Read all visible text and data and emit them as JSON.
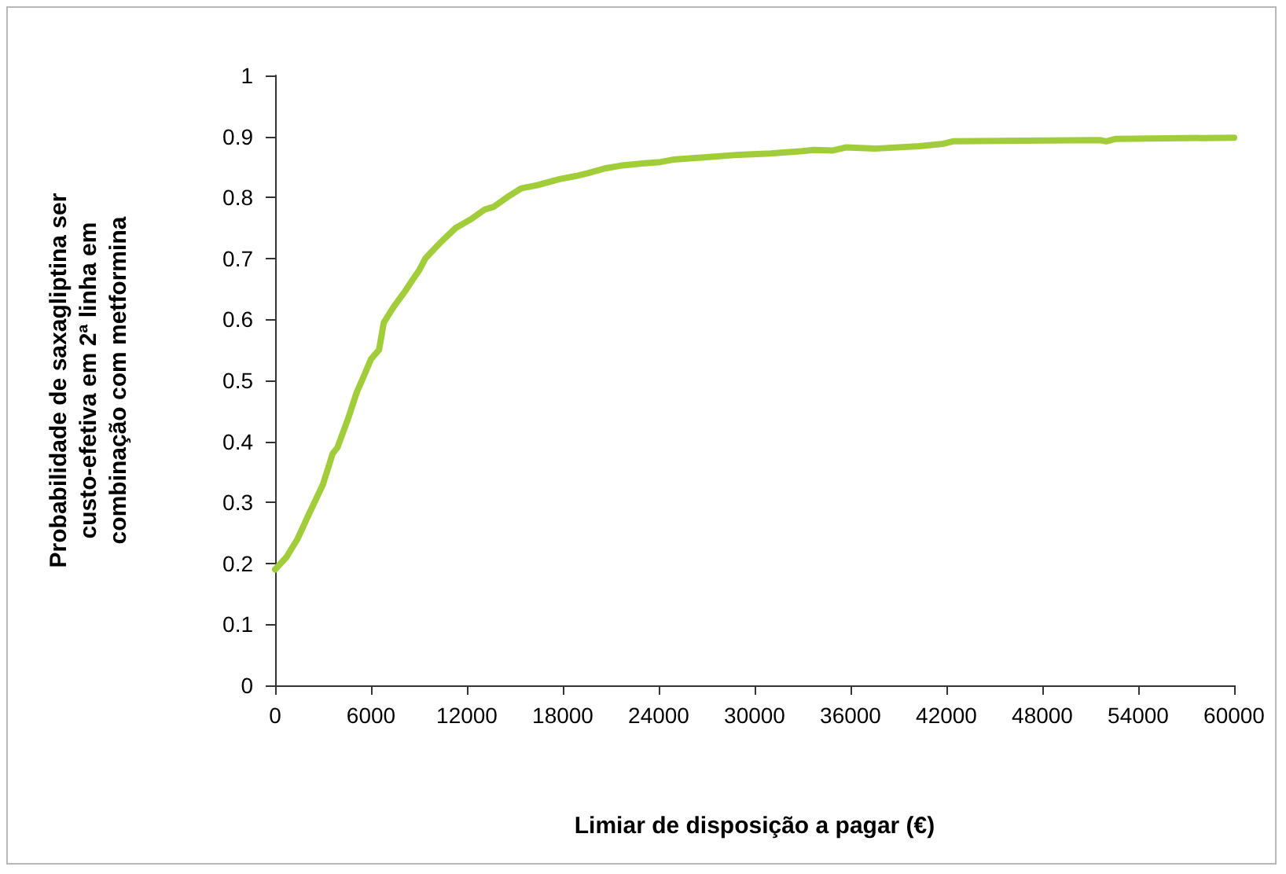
{
  "chart_data": {
    "type": "line",
    "xlabel": "Limiar de disposição a pagar (€)",
    "ylabel": "Probabilidade de saxagliptina ser\ncusto-efetiva em 2ª linha em\ncombinação com metformina",
    "x": [
      0,
      700,
      1400,
      2100,
      3000,
      3600,
      3900,
      4600,
      5100,
      5600,
      6000,
      6500,
      6800,
      7400,
      8100,
      8600,
      9000,
      9400,
      10300,
      11300,
      12300,
      13100,
      13700,
      14500,
      15400,
      16400,
      17800,
      18800,
      19600,
      20700,
      21600,
      23100,
      24100,
      24900,
      27000,
      29000,
      31000,
      33000,
      33700,
      34900,
      35700,
      37500,
      40300,
      41800,
      42400,
      51600,
      52000,
      52600,
      60000
    ],
    "series": [
      {
        "color": "#a2cd3a",
        "values": [
          0.19,
          0.21,
          0.24,
          0.28,
          0.33,
          0.38,
          0.39,
          0.44,
          0.48,
          0.51,
          0.535,
          0.55,
          0.595,
          0.62,
          0.645,
          0.665,
          0.68,
          0.7,
          0.725,
          0.75,
          0.765,
          0.78,
          0.785,
          0.8,
          0.815,
          0.82,
          0.83,
          0.835,
          0.84,
          0.848,
          0.852,
          0.856,
          0.858,
          0.862,
          0.866,
          0.87,
          0.872,
          0.876,
          0.878,
          0.877,
          0.882,
          0.88,
          0.884,
          0.888,
          0.892,
          0.894,
          0.892,
          0.896,
          0.898
        ]
      }
    ],
    "xlim": [
      0,
      60000
    ],
    "xticks": [
      0,
      6000,
      12000,
      18000,
      24000,
      30000,
      36000,
      42000,
      48000,
      54000,
      60000
    ],
    "ylim": [
      0,
      1
    ],
    "yticks": [
      0,
      0.1,
      0.2,
      0.3,
      0.4,
      0.5,
      0.6,
      0.7,
      0.8,
      0.9,
      1
    ],
    "grid": false,
    "marker": "none",
    "line_style": "solid"
  }
}
